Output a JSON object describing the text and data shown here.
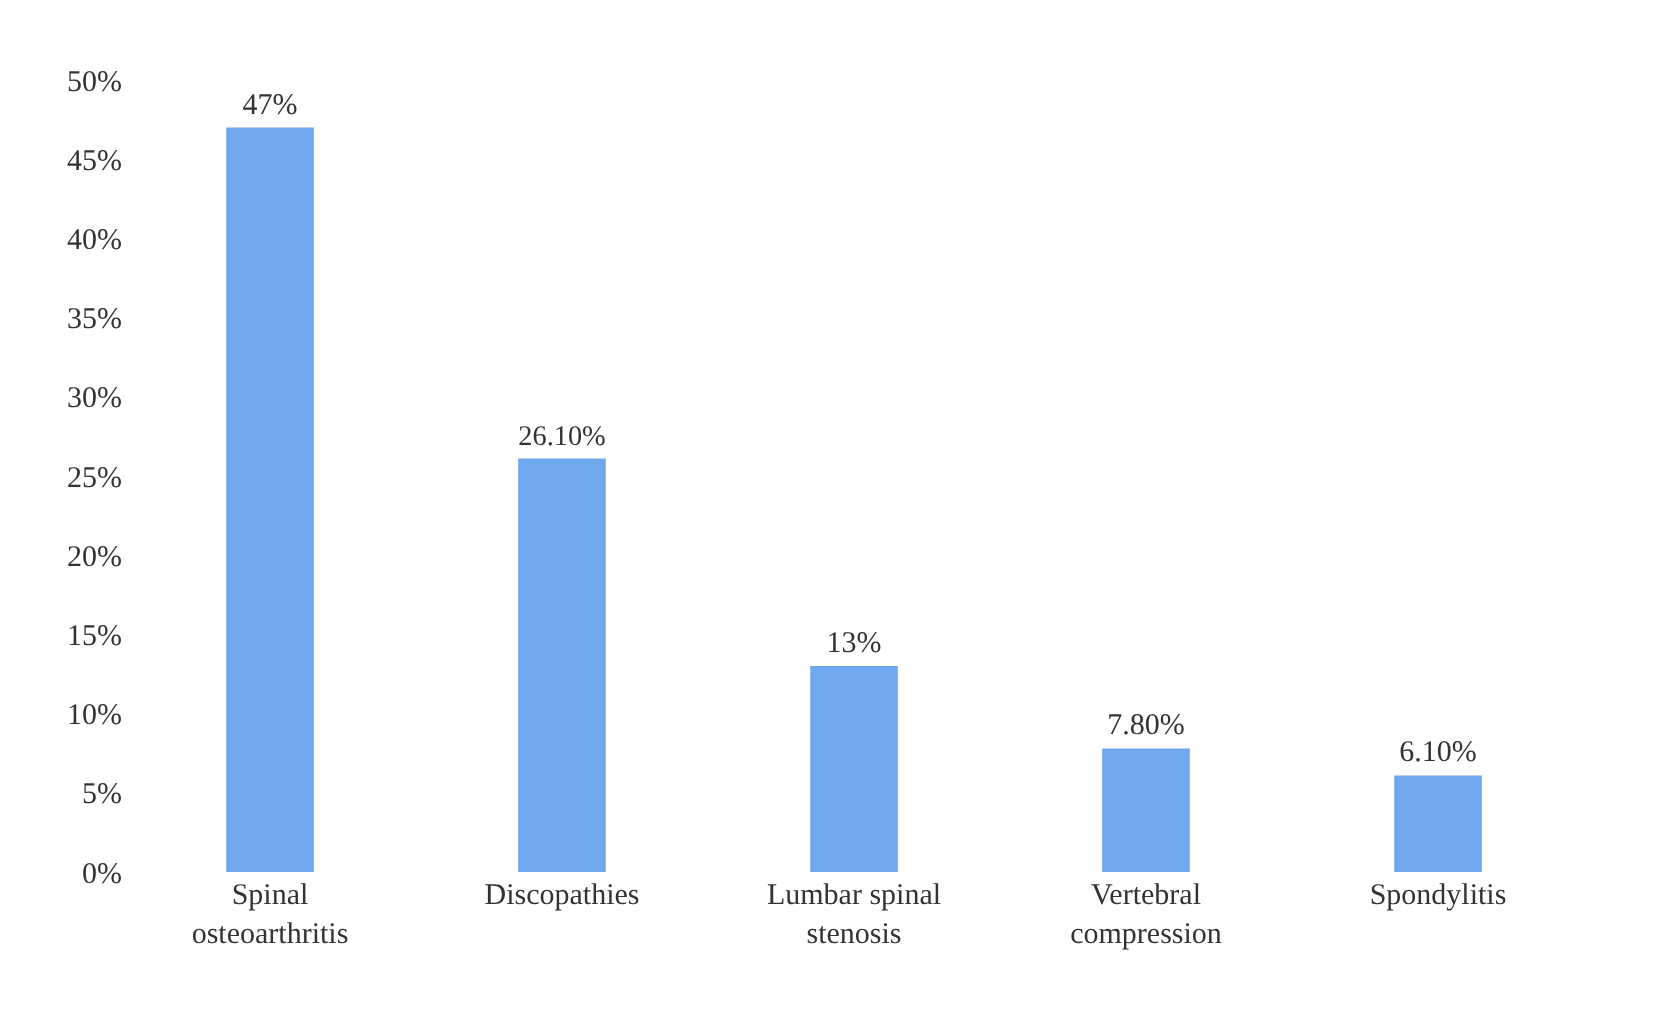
{
  "chart_data": {
    "type": "bar",
    "categories": [
      "Spinal\nosteoarthritis",
      "Discopathies",
      "Lumbar spinal\nstenosis",
      "Vertebral\ncompression",
      "Spondylitis"
    ],
    "values": [
      47,
      26.1,
      13,
      7.8,
      6.1
    ],
    "value_labels": [
      "47%",
      "26.10%",
      "13%",
      "7.80%",
      "6.10%"
    ],
    "color": "#6fa8ec",
    "ylim": [
      0,
      50
    ],
    "yticks": [
      {
        "value": 0,
        "label": "0%"
      },
      {
        "value": 5,
        "label": "5%"
      },
      {
        "value": 10,
        "label": "10%"
      },
      {
        "value": 15,
        "label": "15%"
      },
      {
        "value": 20,
        "label": "20%"
      },
      {
        "value": 25,
        "label": "25%"
      },
      {
        "value": 30,
        "label": "30%"
      },
      {
        "value": 35,
        "label": "35%"
      },
      {
        "value": 40,
        "label": "40%"
      },
      {
        "value": 45,
        "label": "45%"
      },
      {
        "value": 50,
        "label": "50%"
      }
    ]
  }
}
